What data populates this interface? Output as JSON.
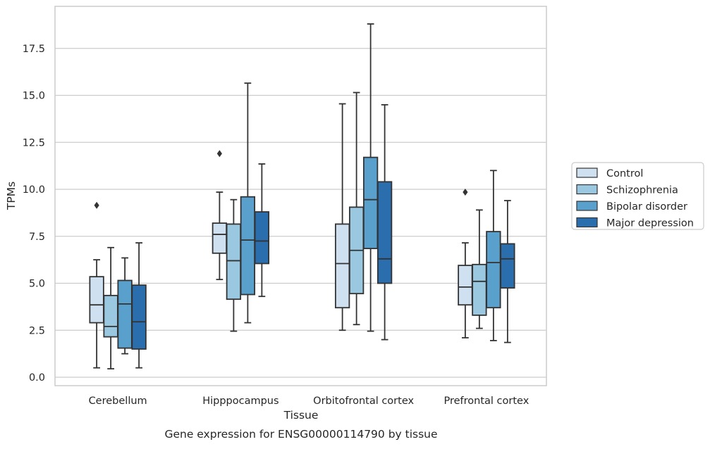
{
  "chart_data": {
    "type": "box",
    "title": "",
    "caption": "Gene expression for ENSG00000114790 by tissue",
    "xlabel": "Tissue",
    "ylabel": "TPMs",
    "ylim": [
      -0.4,
      19.6
    ],
    "yticks": [
      0.0,
      2.5,
      5.0,
      7.5,
      10.0,
      12.5,
      15.0,
      17.5
    ],
    "ytick_labels": [
      "0.0",
      "2.5",
      "5.0",
      "7.5",
      "10.0",
      "12.5",
      "15.0",
      "17.5"
    ],
    "grid": "horizontal",
    "legend_position": "right",
    "categories": [
      "Cerebellum",
      "Hipppocampus",
      "Orbitofrontal cortex",
      "Prefrontal cortex"
    ],
    "series": [
      {
        "name": "Control",
        "color": "#cfe0f1",
        "boxes": [
          {
            "whisker_low": 0.5,
            "q1": 2.9,
            "median": 3.85,
            "q3": 5.35,
            "whisker_high": 6.25,
            "outliers": [
              9.15
            ]
          },
          {
            "whisker_low": 5.2,
            "q1": 6.6,
            "median": 7.6,
            "q3": 8.2,
            "whisker_high": 9.85,
            "outliers": [
              11.9
            ]
          },
          {
            "whisker_low": 2.5,
            "q1": 3.7,
            "median": 6.05,
            "q3": 8.15,
            "whisker_high": 14.55,
            "outliers": []
          },
          {
            "whisker_low": 2.1,
            "q1": 3.85,
            "median": 4.8,
            "q3": 5.95,
            "whisker_high": 7.15,
            "outliers": [
              9.85
            ]
          }
        ]
      },
      {
        "name": "Schizophrenia",
        "color": "#9ac8e0",
        "boxes": [
          {
            "whisker_low": 0.45,
            "q1": 2.15,
            "median": 2.7,
            "q3": 4.35,
            "whisker_high": 6.9,
            "outliers": []
          },
          {
            "whisker_low": 2.45,
            "q1": 4.15,
            "median": 6.2,
            "q3": 8.15,
            "whisker_high": 9.45,
            "outliers": []
          },
          {
            "whisker_low": 2.8,
            "q1": 4.45,
            "median": 6.75,
            "q3": 9.05,
            "whisker_high": 15.15,
            "outliers": []
          },
          {
            "whisker_low": 2.6,
            "q1": 3.3,
            "median": 5.1,
            "q3": 6.0,
            "whisker_high": 8.9,
            "outliers": []
          }
        ]
      },
      {
        "name": "Bipolar disorder",
        "color": "#5aa0cd",
        "boxes": [
          {
            "whisker_low": 1.25,
            "q1": 1.55,
            "median": 3.9,
            "q3": 5.15,
            "whisker_high": 6.35,
            "outliers": []
          },
          {
            "whisker_low": 2.9,
            "q1": 4.4,
            "median": 7.3,
            "q3": 9.6,
            "whisker_high": 15.65,
            "outliers": []
          },
          {
            "whisker_low": 2.45,
            "q1": 6.85,
            "median": 9.45,
            "q3": 11.7,
            "whisker_high": 18.8,
            "outliers": []
          },
          {
            "whisker_low": 1.95,
            "q1": 3.7,
            "median": 6.1,
            "q3": 7.75,
            "whisker_high": 11.0,
            "outliers": []
          }
        ]
      },
      {
        "name": "Major depression",
        "color": "#2b6eae",
        "boxes": [
          {
            "whisker_low": 0.5,
            "q1": 1.5,
            "median": 2.95,
            "q3": 4.9,
            "whisker_high": 7.15,
            "outliers": []
          },
          {
            "whisker_low": 4.3,
            "q1": 6.05,
            "median": 7.25,
            "q3": 8.8,
            "whisker_high": 11.35,
            "outliers": []
          },
          {
            "whisker_low": 2.0,
            "q1": 5.0,
            "median": 6.3,
            "q3": 10.4,
            "whisker_high": 14.5,
            "outliers": []
          },
          {
            "whisker_low": 1.85,
            "q1": 4.75,
            "median": 6.3,
            "q3": 7.1,
            "whisker_high": 9.4,
            "outliers": []
          }
        ]
      }
    ]
  },
  "colors": {
    "grid": "#cccccc",
    "frame": "#cccccc",
    "line": "#333333",
    "text": "#262626"
  }
}
